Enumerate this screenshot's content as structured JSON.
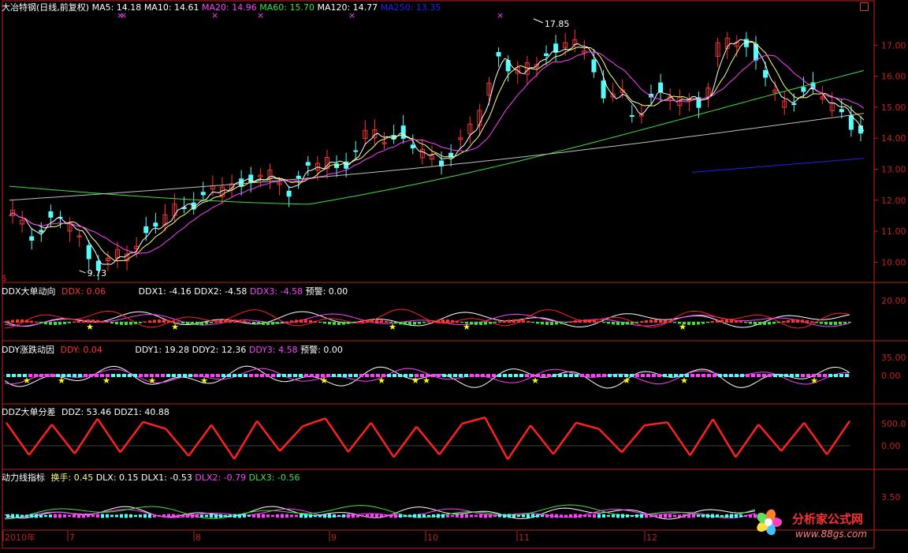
{
  "colors": {
    "background": "#000000",
    "frame": "#c02020",
    "up": "#ff3232",
    "down": "#54fcfc",
    "white": "#ffffff",
    "ma10": "#ffff80",
    "magenta": "#ff40ff",
    "green": "#40e040",
    "ma250": "#2020ff",
    "grey": "#c0c0c0",
    "star": "#ffff00",
    "ddz_pos": "#ff2020",
    "ddz_neg": "#2040ff"
  },
  "main": {
    "stock_title": "大冶特钢(日线,前复权)",
    "ma5": "MA5: 14.18",
    "ma10": "MA10: 14.61",
    "ma20": "MA20: 14.96",
    "ma60": "MA60: 15.70",
    "ma120": "MA120: 14.77",
    "ma250": "MA250: 13.35",
    "high_label": "17.85",
    "low_label": "9.73",
    "y_ticks": [
      "17.00",
      "16.00",
      "15.00",
      "14.00",
      "13.00",
      "12.00",
      "11.00",
      "10.00"
    ],
    "dollar_mark": "$"
  },
  "ddx": {
    "title": "DDX大单动向",
    "ddx": "DDX: 0.06",
    "ddx1": "DDX1: -4.16",
    "ddx2": "DDX2: -4.58",
    "ddx3": "DDX3: -4.58",
    "warn": "预警: 0.00",
    "y_ticks": [
      "20.00"
    ]
  },
  "ddy": {
    "title": "DDY涨跌动因",
    "ddy": "DDY: 0.04",
    "ddy1": "DDY1: 19.28",
    "ddy2": "DDY2: 12.36",
    "ddy3": "DDY3: 4.58",
    "warn": "预警: 0.00",
    "y_ticks": [
      "35.00",
      "0.00"
    ]
  },
  "ddz": {
    "title": "DDZ大单分差",
    "ddz": "DDZ: 53.46",
    "ddz1": "DDZ1: 40.88",
    "y_ticks": [
      "500.0",
      "0.00"
    ]
  },
  "dlx": {
    "title": "动力线指标",
    "hsl": "换手: 0.45",
    "dlx": "DLX: 0.15",
    "dlx1": "DLX1: -0.53",
    "dlx2": "DLX2: -0.79",
    "dlx3": "DLX3: -0.56",
    "y_ticks": [
      "3.50"
    ]
  },
  "timeline": {
    "labels": [
      "2010年",
      "7",
      "8",
      "9",
      "10",
      "11",
      "12"
    ]
  },
  "watermark": {
    "text": "分析家公式网",
    "url": "www.88gs.com"
  },
  "chart_data": [
    {
      "type": "candlestick",
      "title": "大冶特钢(日线,前复权)",
      "ylim": [
        9.5,
        18.0
      ],
      "x_labels": [
        "7",
        "8",
        "9",
        "10",
        "11",
        "12"
      ],
      "high": 17.85,
      "low": 9.73,
      "close_path": [
        11.5,
        11.2,
        10.9,
        11.3,
        11.4,
        11.2,
        10.6,
        10.0,
        9.9,
        10.2,
        10.5,
        10.9,
        11.2,
        11.5,
        11.8,
        12.0,
        12.1,
        12.3,
        12.6,
        12.5,
        12.8,
        12.7,
        12.6,
        12.4,
        12.9,
        13.1,
        13.3,
        13.0,
        13.5,
        13.9,
        14.2,
        14.0,
        14.1,
        13.7,
        13.4,
        13.3,
        13.5,
        13.8,
        14.5,
        15.4,
        16.8,
        16.2,
        16.0,
        16.5,
        16.9,
        16.6,
        17.3,
        16.8,
        16.2,
        15.2,
        15.4,
        14.8,
        15.0,
        15.6,
        15.3,
        15.1,
        15.4,
        15.2,
        16.8,
        17.3,
        17.1,
        16.8,
        15.9,
        15.0,
        15.3,
        15.6,
        15.4,
        15.2,
        14.9,
        14.5,
        14.2
      ],
      "moving_averages": [
        "MA5",
        "MA10",
        "MA20",
        "MA60",
        "MA120",
        "MA250"
      ],
      "last_values": {
        "MA5": 14.18,
        "MA10": 14.61,
        "MA20": 14.96,
        "MA60": 15.7,
        "MA120": 14.77,
        "MA250": 13.35
      }
    },
    {
      "type": "line",
      "title": "DDX大单动向",
      "series": [
        {
          "name": "DDX1",
          "last": -4.16
        },
        {
          "name": "DDX2",
          "last": -4.58
        },
        {
          "name": "DDX3",
          "last": -4.58
        }
      ],
      "y_ticks": [
        20.0
      ]
    },
    {
      "type": "line",
      "title": "DDY涨跌动因",
      "series": [
        {
          "name": "DDY1",
          "last": 19.28
        },
        {
          "name": "DDY2",
          "last": 12.36
        },
        {
          "name": "DDY3",
          "last": 4.58
        }
      ],
      "y_ticks": [
        35.0,
        0.0
      ]
    },
    {
      "type": "area",
      "title": "DDZ大单分差",
      "series": [
        {
          "name": "DDZ",
          "last": 53.46
        },
        {
          "name": "DDZ1",
          "last": 40.88
        }
      ],
      "y_ticks": [
        500.0,
        0.0
      ],
      "peaks": [
        520,
        -210,
        480,
        -180,
        610,
        -150,
        540,
        380,
        -230,
        470,
        -300,
        560,
        -120,
        440,
        620,
        -140,
        520,
        -260,
        430,
        -200,
        500,
        640,
        -310,
        460,
        -190,
        520,
        380,
        -150,
        460,
        530,
        -220,
        600,
        -260,
        480,
        -120,
        520,
        -200,
        560
      ]
    },
    {
      "type": "line",
      "title": "动力线指标",
      "series": [
        {
          "name": "DLX",
          "last": 0.15
        },
        {
          "name": "DLX1",
          "last": -0.53
        },
        {
          "name": "DLX2",
          "last": -0.79
        },
        {
          "name": "DLX3",
          "last": -0.56
        }
      ],
      "y_ticks": [
        3.5
      ]
    }
  ]
}
